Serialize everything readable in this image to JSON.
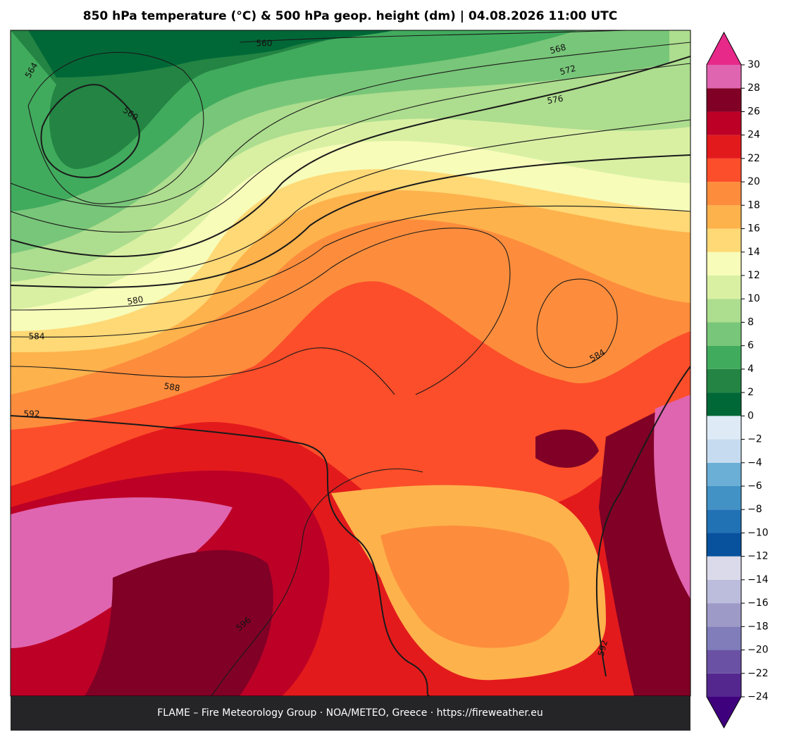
{
  "title": "850 hPa temperature (°C) & 500 hPa geop. height (dm)  |  04.08.2026 11:00 UTC",
  "footer": "FLAME – Fire Meteorology Group · NOA/METEO, Greece · https://fireweather.eu",
  "contour_labels": [
    560,
    564,
    560,
    568,
    572,
    576,
    580,
    584,
    588,
    592,
    596,
    584,
    592
  ],
  "colorbar": {
    "levels": [
      -24,
      -22,
      -20,
      -18,
      -16,
      -14,
      -12,
      -10,
      -8,
      -6,
      -4,
      -2,
      0,
      2,
      4,
      6,
      8,
      10,
      12,
      14,
      16,
      18,
      20,
      22,
      24,
      26,
      28,
      30
    ],
    "colors": [
      "#54278f",
      "#6a51a3",
      "#807dba",
      "#9e9ac8",
      "#bcbddc",
      "#dadaeb",
      "#08519c",
      "#2171b5",
      "#4292c6",
      "#6baed6",
      "#c6dbef",
      "#deebf7",
      "#006837",
      "#238443",
      "#41ab5d",
      "#78c679",
      "#addd8e",
      "#d9f0a3",
      "#f7fcb9",
      "#fed976",
      "#feb24c",
      "#fd8d3c",
      "#fc4e2a",
      "#e31a1c",
      "#bd0026",
      "#800026",
      "#df65b0"
    ],
    "over_color": "#e7298a",
    "under_color": "#3f007d",
    "ticks": [
      {
        "value": -24,
        "label": "−24"
      },
      {
        "value": -22,
        "label": "−22"
      },
      {
        "value": -20,
        "label": "−20"
      },
      {
        "value": -18,
        "label": "−18"
      },
      {
        "value": -16,
        "label": "−16"
      },
      {
        "value": -14,
        "label": "−14"
      },
      {
        "value": -12,
        "label": "−12"
      },
      {
        "value": -10,
        "label": "−10"
      },
      {
        "value": -8,
        "label": "−8"
      },
      {
        "value": -6,
        "label": "−6"
      },
      {
        "value": -4,
        "label": "−4"
      },
      {
        "value": -2,
        "label": "−2"
      },
      0,
      2,
      4,
      6,
      8,
      10,
      12,
      14,
      16,
      18,
      20,
      22,
      24,
      26,
      28,
      30
    ]
  }
}
